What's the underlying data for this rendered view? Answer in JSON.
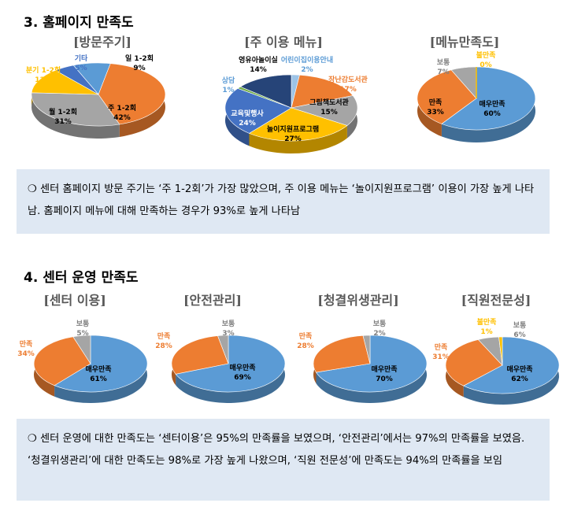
{
  "sections": [
    {
      "title": "3. 홈페이지 만족도",
      "summary": "❍ 센터 홈페이지 방문 주기는 ‘주 1-2회’가 가장 많았으며, 주 이용 메뉴는 ‘놀이지원프로그램’ 이용이 가장 높게 나타남. 홈페이지 메뉴에 대해 만족하는 경우가 93%로 높게 나타남"
    },
    {
      "title": "4. 센터 운영 만족도",
      "summary": "❍ 센터 운영에 대한 만족도는 ‘센터이용’은 95%의 만족률을 보였으며, ‘안전관리’에서는 97%의 만족률을 보였음. ‘청결위생관리’에 대한 만족도는 98%로 가장 높게 나왔으며, ‘직원 전문성’에 만족도는 94%의 만족률을 보임"
    }
  ],
  "colors": {
    "blue": "#5b9bd5",
    "orange": "#ed7d31",
    "gray": "#a5a5a5",
    "yellow": "#ffc000",
    "green": "#70ad47",
    "navy": "#264478",
    "summary_bg": "#dfe8f3"
  },
  "chart_data": [
    {
      "type": "pie",
      "title": "[방문주기]",
      "slices": [
        {
          "label": "일 1-2회",
          "value": 9,
          "pct": "9%",
          "color": "#5b9bd5"
        },
        {
          "label": "주 1-2회",
          "value": 42,
          "pct": "42%",
          "color": "#ed7d31"
        },
        {
          "label": "월 1-2회",
          "value": 31,
          "pct": "31%",
          "color": "#a5a5a5"
        },
        {
          "label": "분기 1-2회",
          "value": 13,
          "pct": "13%",
          "color": "#ffc000"
        },
        {
          "label": "기타",
          "value": 5,
          "pct": "5%",
          "color": "#4472c4"
        }
      ]
    },
    {
      "type": "pie",
      "title": "[주 이용 메뉴]",
      "slices": [
        {
          "label": "어린이집이용안내",
          "value": 2,
          "pct": "2%",
          "color": "#9dc3e6"
        },
        {
          "label": "장난감도서관",
          "value": 17,
          "pct": "17%",
          "color": "#ed7d31"
        },
        {
          "label": "그림책도서관",
          "value": 15,
          "pct": "15%",
          "color": "#a5a5a5"
        },
        {
          "label": "놀이지원프로그램",
          "value": 27,
          "pct": "27%",
          "color": "#ffc000"
        },
        {
          "label": "교육및행사",
          "value": 24,
          "pct": "24%",
          "color": "#4472c4"
        },
        {
          "label": "상담",
          "value": 1,
          "pct": "1%",
          "color": "#70ad47"
        },
        {
          "label": "영유아놀이실",
          "value": 14,
          "pct": "14%",
          "color": "#264478"
        }
      ]
    },
    {
      "type": "pie",
      "title": "[메뉴만족도]",
      "slices": [
        {
          "label": "매우만족",
          "value": 60,
          "pct": "60%",
          "color": "#5b9bd5"
        },
        {
          "label": "만족",
          "value": 33,
          "pct": "33%",
          "color": "#ed7d31"
        },
        {
          "label": "보통",
          "value": 7,
          "pct": "7%",
          "color": "#a5a5a5"
        },
        {
          "label": "불만족",
          "value": 0,
          "pct": "0%",
          "color": "#ffc000"
        }
      ]
    },
    {
      "type": "pie",
      "title": "[센터 이용]",
      "slices": [
        {
          "label": "매우만족",
          "value": 61,
          "pct": "61%",
          "color": "#5b9bd5"
        },
        {
          "label": "만족",
          "value": 34,
          "pct": "34%",
          "color": "#ed7d31"
        },
        {
          "label": "보통",
          "value": 5,
          "pct": "5%",
          "color": "#a5a5a5"
        }
      ]
    },
    {
      "type": "pie",
      "title": "[안전관리]",
      "slices": [
        {
          "label": "매우만족",
          "value": 69,
          "pct": "69%",
          "color": "#5b9bd5"
        },
        {
          "label": "만족",
          "value": 28,
          "pct": "28%",
          "color": "#ed7d31"
        },
        {
          "label": "보통",
          "value": 3,
          "pct": "3%",
          "color": "#a5a5a5"
        }
      ]
    },
    {
      "type": "pie",
      "title": "[청결위생관리]",
      "slices": [
        {
          "label": "매우만족",
          "value": 70,
          "pct": "70%",
          "color": "#5b9bd5"
        },
        {
          "label": "만족",
          "value": 28,
          "pct": "28%",
          "color": "#ed7d31"
        },
        {
          "label": "보통",
          "value": 2,
          "pct": "2%",
          "color": "#a5a5a5"
        }
      ]
    },
    {
      "type": "pie",
      "title": "[직원전문성]",
      "slices": [
        {
          "label": "매우만족",
          "value": 62,
          "pct": "62%",
          "color": "#5b9bd5"
        },
        {
          "label": "만족",
          "value": 31,
          "pct": "31%",
          "color": "#ed7d31"
        },
        {
          "label": "보통",
          "value": 6,
          "pct": "6%",
          "color": "#a5a5a5"
        },
        {
          "label": "불만족",
          "value": 1,
          "pct": "1%",
          "color": "#ffc000"
        }
      ]
    }
  ]
}
